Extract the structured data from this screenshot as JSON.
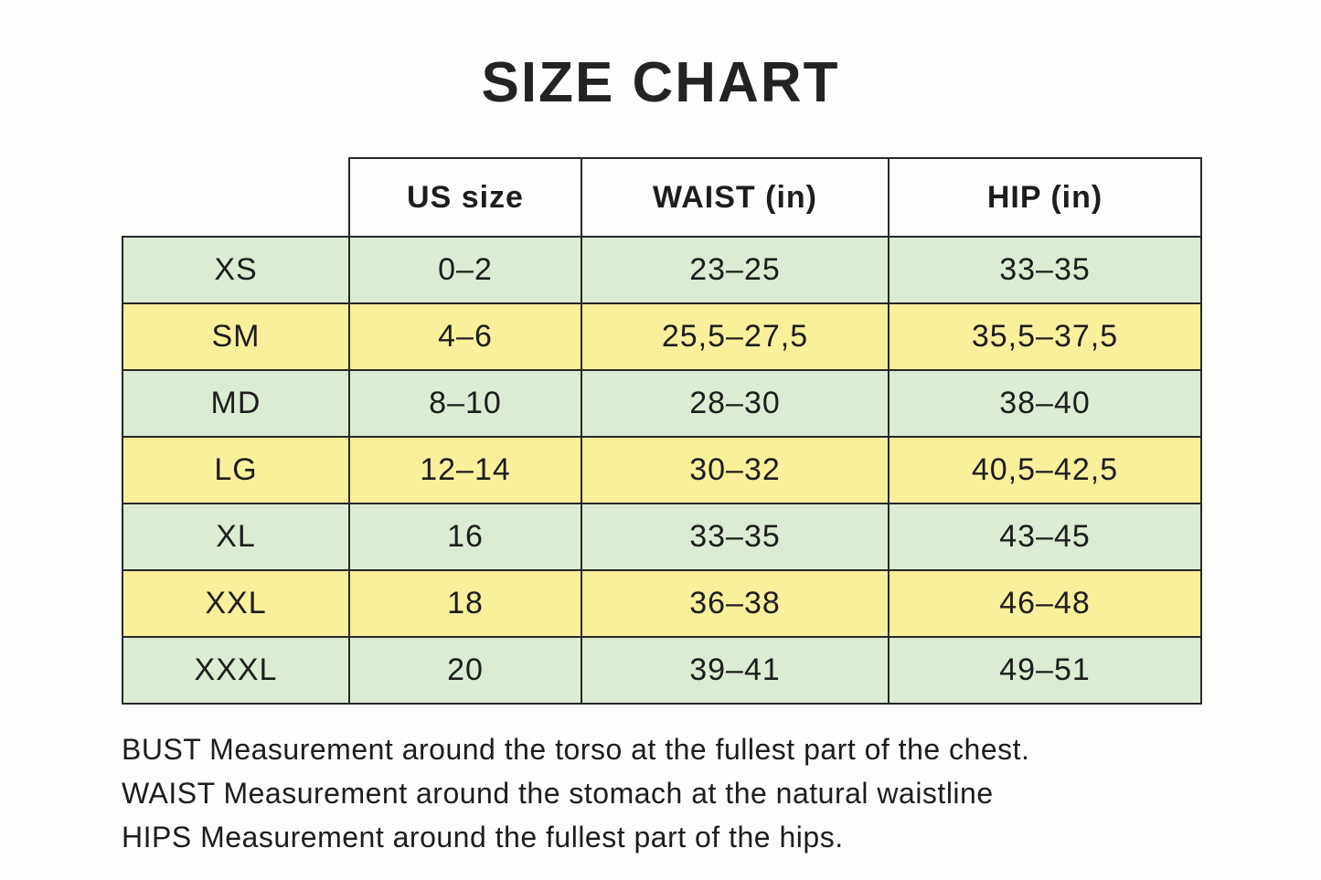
{
  "title": "SIZE CHART",
  "table": {
    "headers": [
      "US size",
      "WAIST (in)",
      "HIP (in)"
    ],
    "rows": [
      {
        "size": "XS",
        "us_size": "0–2",
        "waist": "23–25",
        "hip": "33–35",
        "tone": "green"
      },
      {
        "size": "SM",
        "us_size": "4–6",
        "waist": "25,5–27,5",
        "hip": "35,5–37,5",
        "tone": "yellow"
      },
      {
        "size": "MD",
        "us_size": "8–10",
        "waist": "28–30",
        "hip": "38–40",
        "tone": "green"
      },
      {
        "size": "LG",
        "us_size": "12–14",
        "waist": "30–32",
        "hip": "40,5–42,5",
        "tone": "yellow"
      },
      {
        "size": "XL",
        "us_size": "16",
        "waist": "33–35",
        "hip": "43–45",
        "tone": "green"
      },
      {
        "size": "XXL",
        "us_size": "18",
        "waist": "36–38",
        "hip": "46–48",
        "tone": "yellow"
      },
      {
        "size": "XXXL",
        "us_size": "20",
        "waist": "39–41",
        "hip": "49–51",
        "tone": "green"
      }
    ]
  },
  "footnotes": [
    "BUST Measurement around the torso at the fullest part of the chest.",
    "WAIST Measurement around the stomach at the natural waistline",
    "HIPS Measurement around the fullest part of the hips."
  ],
  "colors": {
    "row_green": "#dcebd3",
    "row_yellow": "#f9f09c",
    "border": "#272727",
    "text": "#1d1d1d",
    "background": "#fdfdfb"
  }
}
